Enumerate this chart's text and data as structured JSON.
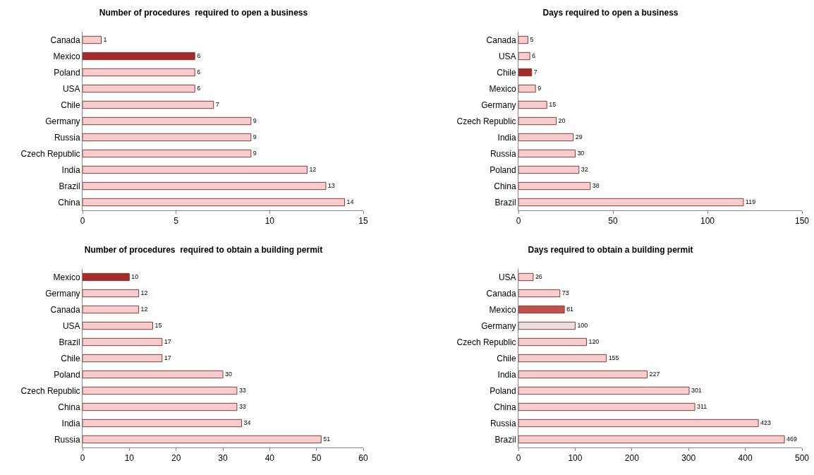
{
  "chart_data": [
    {
      "type": "bar",
      "orientation": "horizontal",
      "title": "Number of procedures  required to open a business",
      "categories": [
        "Canada",
        "Mexico",
        "Poland",
        "USA",
        "Chile",
        "Germany",
        "Russia",
        "Czech Republic",
        "India",
        "Brazil",
        "China"
      ],
      "values": [
        1,
        6,
        6,
        6,
        7,
        9,
        9,
        9,
        12,
        13,
        14
      ],
      "colors": [
        "#f6cccc",
        "#a52a2a",
        "#f6cccc",
        "#f6cccc",
        "#f6cccc",
        "#f6cccc",
        "#f6cccc",
        "#f6cccc",
        "#f6cccc",
        "#f6cccc",
        "#f6cccc"
      ],
      "xlim": [
        0,
        15
      ],
      "xticks": [
        0,
        5,
        10,
        15
      ],
      "data_labels": true
    },
    {
      "type": "bar",
      "orientation": "horizontal",
      "title": "Days required to open a business",
      "categories": [
        "Canada",
        "USA",
        "Chile",
        "Mexico",
        "Germany",
        "Czech Republic",
        "India",
        "Russia",
        "Poland",
        "China",
        "Brazil"
      ],
      "values": [
        5,
        6,
        7,
        9,
        15,
        20,
        29,
        30,
        32,
        38,
        119
      ],
      "colors": [
        "#f6cccc",
        "#f6cccc",
        "#a52a2a",
        "#f6cccc",
        "#f6cccc",
        "#f6cccc",
        "#f6cccc",
        "#f6cccc",
        "#f6cccc",
        "#f6cccc",
        "#f6cccc"
      ],
      "xlim": [
        0,
        150
      ],
      "xticks": [
        0,
        50,
        100,
        150
      ],
      "data_labels": true
    },
    {
      "type": "bar",
      "orientation": "horizontal",
      "title": "Number of procedures  required to obtain a building permit",
      "categories": [
        "Mexico",
        "Germany",
        "Canada",
        "USA",
        "Brazil",
        "Chile",
        "Poland",
        "Czech Republic",
        "China",
        "India",
        "Russia"
      ],
      "values": [
        10,
        12,
        12,
        15,
        17,
        17,
        30,
        33,
        33,
        34,
        51
      ],
      "colors": [
        "#a52a2a",
        "#f6cccc",
        "#f6cccc",
        "#f6cccc",
        "#f6cccc",
        "#f6cccc",
        "#f6cccc",
        "#f6cccc",
        "#f6cccc",
        "#f6cccc",
        "#f6cccc"
      ],
      "xlim": [
        0,
        60
      ],
      "xticks": [
        0,
        10,
        20,
        30,
        40,
        50,
        60
      ],
      "data_labels": true
    },
    {
      "type": "bar",
      "orientation": "horizontal",
      "title": "Days required to obtain a building permit",
      "categories": [
        "USA",
        "Canada",
        "Mexico",
        "Germany",
        "Czech Republic",
        "Chile",
        "India",
        "Poland",
        "China",
        "Russia",
        "Brazil"
      ],
      "values": [
        26,
        73,
        81,
        100,
        120,
        155,
        227,
        301,
        311,
        423,
        469
      ],
      "colors": [
        "#f6cccc",
        "#f6cccc",
        "#c0504d",
        "#e6e0e0",
        "#f6cccc",
        "#f6cccc",
        "#f6cccc",
        "#f6cccc",
        "#f6cccc",
        "#f6cccc",
        "#f6cccc"
      ],
      "xlim": [
        0,
        500
      ],
      "xticks": [
        0,
        100,
        200,
        300,
        400,
        500
      ],
      "data_labels": true
    }
  ]
}
